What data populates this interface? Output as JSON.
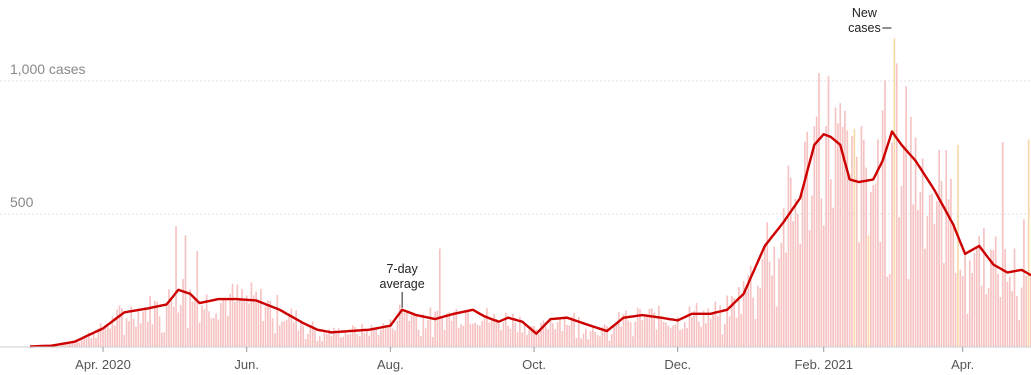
{
  "chart_data": {
    "type": "bar",
    "title": "",
    "xlabel": "",
    "ylabel": "",
    "ylim": [
      0,
      1100
    ],
    "y_ticks": [
      {
        "value": 1000,
        "label": "1,000 cases"
      },
      {
        "value": 500,
        "label": "500"
      }
    ],
    "x_start": "2020-03-01",
    "x_end": "2021-04-30",
    "x_ticks": [
      {
        "date": "2020-04-01",
        "label": "Apr. 2020"
      },
      {
        "date": "2020-06-01",
        "label": "Jun."
      },
      {
        "date": "2020-08-01",
        "label": "Aug."
      },
      {
        "date": "2020-10-01",
        "label": "Oct."
      },
      {
        "date": "2020-12-01",
        "label": "Dec."
      },
      {
        "date": "2021-02-01",
        "label": "Feb. 2021"
      },
      {
        "date": "2021-04-01",
        "label": "Apr."
      }
    ],
    "grid": true,
    "colors": {
      "bars": "#f6c2c2",
      "highlight_bars": "#f7d9a8",
      "average_line": "#cc0000"
    },
    "average_series": {
      "name": "7-day average",
      "points": [
        [
          "2020-03-01",
          2
        ],
        [
          "2020-03-10",
          5
        ],
        [
          "2020-03-20",
          20
        ],
        [
          "2020-04-01",
          70
        ],
        [
          "2020-04-10",
          130
        ],
        [
          "2020-04-20",
          145
        ],
        [
          "2020-04-28",
          160
        ],
        [
          "2020-05-03",
          215
        ],
        [
          "2020-05-08",
          200
        ],
        [
          "2020-05-12",
          165
        ],
        [
          "2020-05-20",
          180
        ],
        [
          "2020-05-28",
          180
        ],
        [
          "2020-06-05",
          175
        ],
        [
          "2020-06-15",
          140
        ],
        [
          "2020-06-25",
          90
        ],
        [
          "2020-07-01",
          65
        ],
        [
          "2020-07-07",
          55
        ],
        [
          "2020-07-15",
          60
        ],
        [
          "2020-07-23",
          65
        ],
        [
          "2020-08-01",
          80
        ],
        [
          "2020-08-06",
          140
        ],
        [
          "2020-08-12",
          120
        ],
        [
          "2020-08-20",
          105
        ],
        [
          "2020-08-28",
          125
        ],
        [
          "2020-09-05",
          140
        ],
        [
          "2020-09-10",
          115
        ],
        [
          "2020-09-16",
          95
        ],
        [
          "2020-09-20",
          110
        ],
        [
          "2020-09-26",
          95
        ],
        [
          "2020-10-02",
          50
        ],
        [
          "2020-10-08",
          105
        ],
        [
          "2020-10-15",
          110
        ],
        [
          "2020-10-25",
          80
        ],
        [
          "2020-11-01",
          60
        ],
        [
          "2020-11-08",
          110
        ],
        [
          "2020-11-16",
          120
        ],
        [
          "2020-11-24",
          110
        ],
        [
          "2020-12-01",
          100
        ],
        [
          "2020-12-07",
          125
        ],
        [
          "2020-12-15",
          125
        ],
        [
          "2020-12-22",
          140
        ],
        [
          "2020-12-29",
          200
        ],
        [
          "2021-01-07",
          380
        ],
        [
          "2021-01-15",
          470
        ],
        [
          "2021-01-22",
          560
        ],
        [
          "2021-01-28",
          760
        ],
        [
          "2021-02-01",
          800
        ],
        [
          "2021-02-04",
          790
        ],
        [
          "2021-02-08",
          760
        ],
        [
          "2021-02-12",
          630
        ],
        [
          "2021-02-16",
          620
        ],
        [
          "2021-02-22",
          630
        ],
        [
          "2021-02-26",
          700
        ],
        [
          "2021-03-02",
          810
        ],
        [
          "2021-03-06",
          760
        ],
        [
          "2021-03-12",
          700
        ],
        [
          "2021-03-20",
          590
        ],
        [
          "2021-03-28",
          460
        ],
        [
          "2021-04-02",
          350
        ],
        [
          "2021-04-08",
          380
        ],
        [
          "2021-04-14",
          310
        ],
        [
          "2021-04-20",
          280
        ],
        [
          "2021-04-26",
          290
        ],
        [
          "2021-04-30",
          270
        ]
      ]
    },
    "bars": {
      "name": "New cases",
      "spikes": [
        [
          "2020-05-02",
          455
        ],
        [
          "2020-05-06",
          420
        ],
        [
          "2020-05-11",
          360
        ],
        [
          "2020-08-22",
          370
        ],
        [
          "2021-01-30",
          1030
        ],
        [
          "2021-02-06",
          900
        ],
        [
          "2021-02-20",
          1000
        ],
        [
          "2021-02-26",
          890
        ],
        [
          "2021-03-03",
          1160
        ],
        [
          "2021-03-08",
          980
        ],
        [
          "2021-03-25",
          740
        ],
        [
          "2021-04-18",
          770
        ],
        [
          "2021-04-27",
          480
        ]
      ],
      "highlights": [
        [
          "2021-02-14",
          820
        ],
        [
          "2021-02-20",
          420
        ],
        [
          "2021-03-03",
          1160
        ],
        [
          "2021-03-30",
          760
        ],
        [
          "2021-04-29",
          780
        ]
      ]
    },
    "annotations": [
      {
        "lines": [
          "New",
          "cases"
        ],
        "label": "New cases",
        "date": "2021-03-03",
        "value": 1160
      },
      {
        "lines": [
          "7-day",
          "average"
        ],
        "label": "7-day average",
        "date": "2020-08-06",
        "value": 140
      }
    ]
  }
}
